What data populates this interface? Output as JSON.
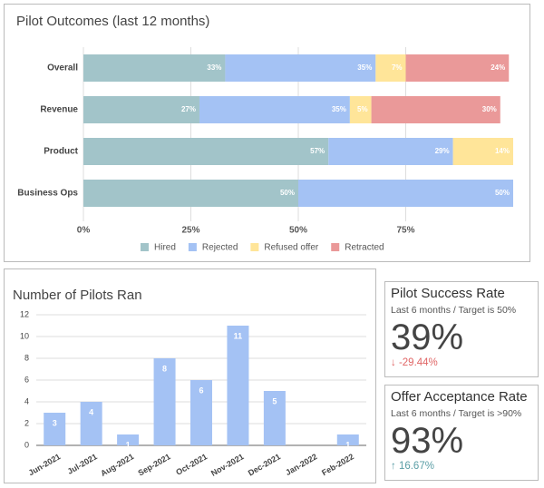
{
  "chart_data": [
    {
      "type": "stacked-hbar",
      "title": "Pilot Outcomes (last 12 months)",
      "categories": [
        "Overall",
        "Revenue",
        "Product",
        "Business Ops"
      ],
      "series": [
        {
          "name": "Hired",
          "color": "#a2c4c9",
          "values": [
            33,
            27,
            57,
            50
          ],
          "value_labels": [
            "33%",
            "27%",
            "57%",
            "50%"
          ]
        },
        {
          "name": "Rejected",
          "color": "#a4c2f4",
          "values": [
            35,
            35,
            29,
            50
          ],
          "value_labels": [
            "35%",
            "35%",
            "29%",
            "50%"
          ]
        },
        {
          "name": "Refused offer",
          "color": "#ffe599",
          "values": [
            7,
            5,
            14,
            null
          ],
          "value_labels": [
            "7%",
            "5%",
            "14%",
            null
          ]
        },
        {
          "name": "Retracted",
          "color": "#ea9999",
          "values": [
            24,
            30,
            null,
            null
          ],
          "value_labels": [
            "24%",
            "30%",
            null,
            null
          ]
        }
      ],
      "xlim": [
        0,
        100
      ],
      "xticks": [
        {
          "value": 0,
          "label": "0%"
        },
        {
          "value": 25,
          "label": "25%"
        },
        {
          "value": 50,
          "label": "50%"
        },
        {
          "value": 75,
          "label": "75%"
        }
      ],
      "grid": true,
      "legend": "bottom"
    },
    {
      "type": "bar",
      "title": "Number of Pilots Ran",
      "categories": [
        "Jun-2021",
        "Jul-2021",
        "Aug-2021",
        "Sep-2021",
        "Oct-2021",
        "Nov-2021",
        "Dec-2021",
        "Jan-2022",
        "Feb-2022"
      ],
      "values": [
        3,
        4,
        1,
        8,
        6,
        11,
        5,
        null,
        1
      ],
      "color": "#a4c2f4",
      "ylim": [
        0,
        12
      ],
      "yticks": [
        0,
        2,
        4,
        6,
        8,
        10,
        12
      ],
      "grid": true
    }
  ],
  "scorecards": [
    {
      "title": "Pilot Success Rate",
      "subtitle": "Last 6 months / Target is 50%",
      "value": "39%",
      "change": "↓ -29.44%",
      "change_color": "#e06666"
    },
    {
      "title": "Offer Acceptance Rate",
      "subtitle": "Last 6 months / Target is >90%",
      "value": "93%",
      "change": "↑ 16.67%",
      "change_color": "#5b9ea6"
    }
  ]
}
